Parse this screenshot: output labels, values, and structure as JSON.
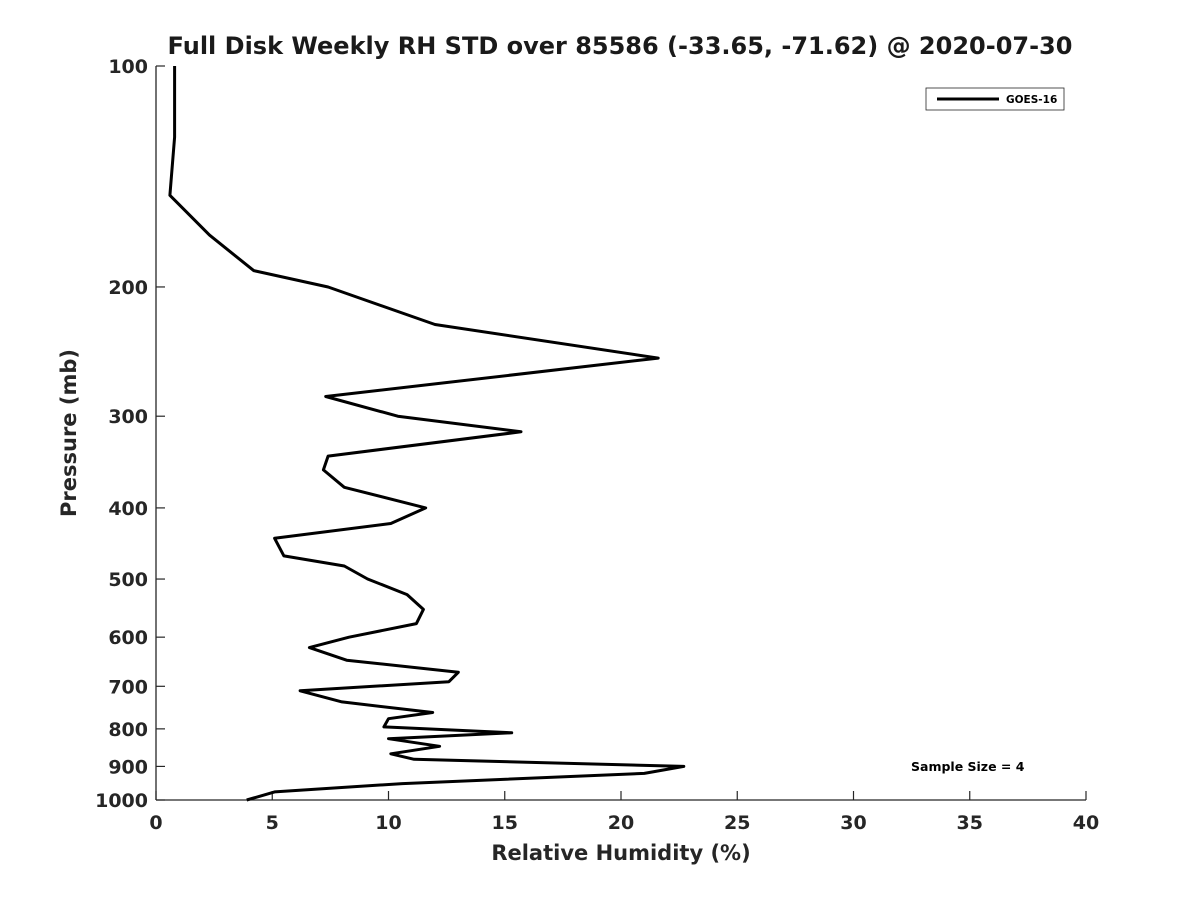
{
  "chart_data": {
    "type": "line",
    "title": "Full Disk Weekly RH STD over 85586 (-33.65, -71.62) @ 2020-07-30",
    "xlabel": "Relative Humidity (%)",
    "ylabel": "Pressure (mb)",
    "xlim": [
      0,
      40
    ],
    "ylim": [
      100,
      1000
    ],
    "y_scale": "log",
    "y_reversed": true,
    "x_ticks": [
      0,
      5,
      10,
      15,
      20,
      25,
      30,
      35,
      40
    ],
    "y_ticks": [
      100,
      200,
      300,
      400,
      500,
      600,
      700,
      800,
      900,
      1000
    ],
    "grid": false,
    "legend": "top-right",
    "annotation": "Sample Size = 4",
    "line_color": "#000000",
    "series": [
      {
        "name": "GOES-16",
        "points": [
          [
            0.8,
            100
          ],
          [
            0.8,
            125
          ],
          [
            0.6,
            150
          ],
          [
            2.3,
            170
          ],
          [
            4.2,
            190
          ],
          [
            7.4,
            200
          ],
          [
            12.0,
            225
          ],
          [
            21.6,
            250
          ],
          [
            7.3,
            282
          ],
          [
            10.4,
            300
          ],
          [
            15.7,
            315
          ],
          [
            7.4,
            340
          ],
          [
            7.2,
            355
          ],
          [
            8.1,
            375
          ],
          [
            11.6,
            400
          ],
          [
            10.1,
            420
          ],
          [
            5.1,
            440
          ],
          [
            5.5,
            465
          ],
          [
            8.1,
            480
          ],
          [
            9.1,
            500
          ],
          [
            10.8,
            525
          ],
          [
            11.5,
            550
          ],
          [
            11.2,
            575
          ],
          [
            8.3,
            600
          ],
          [
            6.6,
            620
          ],
          [
            8.2,
            645
          ],
          [
            13.0,
            670
          ],
          [
            12.6,
            690
          ],
          [
            6.2,
            710
          ],
          [
            8.0,
            735
          ],
          [
            11.9,
            760
          ],
          [
            10.0,
            775
          ],
          [
            9.8,
            795
          ],
          [
            15.3,
            810
          ],
          [
            10.0,
            825
          ],
          [
            12.2,
            845
          ],
          [
            10.1,
            865
          ],
          [
            11.1,
            880
          ],
          [
            22.7,
            900
          ],
          [
            21.0,
            920
          ],
          [
            10.6,
            950
          ],
          [
            5.1,
            975
          ],
          [
            3.9,
            1000
          ]
        ]
      }
    ]
  }
}
